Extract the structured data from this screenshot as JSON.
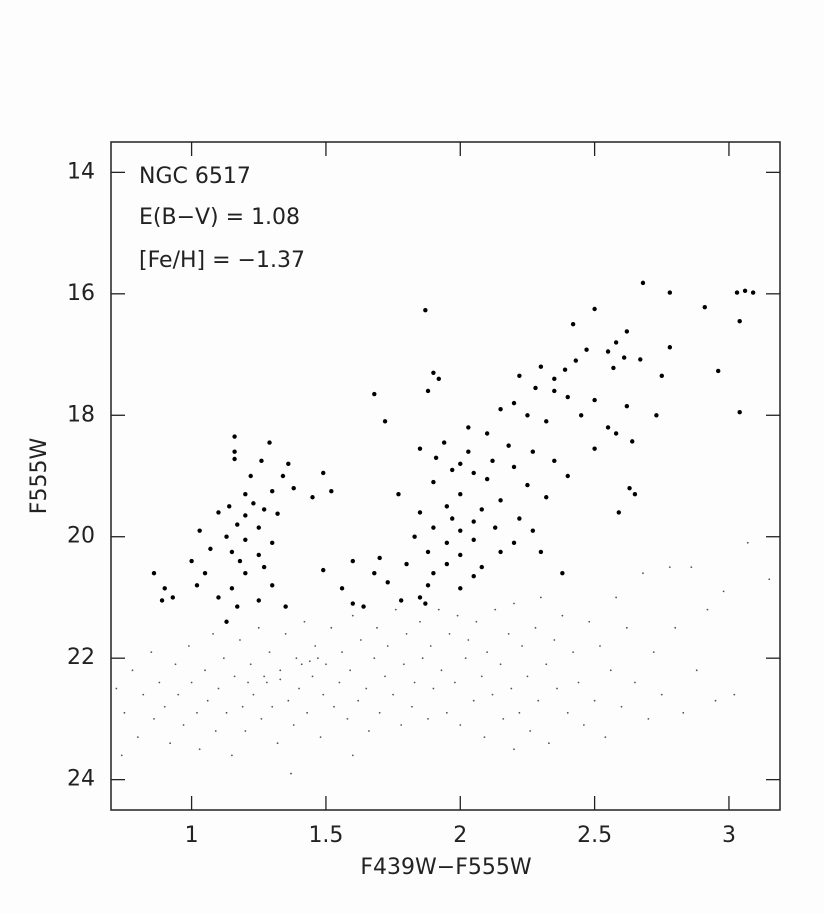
{
  "chart_data": {
    "type": "scatter",
    "annotations": [
      "NGC 6517",
      "E(B−V) = 1.08",
      "[Fe/H] = −1.37"
    ],
    "x_label": "F439W−F555W",
    "y_label": "F555W",
    "xlim": [
      0.7,
      3.19
    ],
    "ylim": [
      24.5,
      13.5
    ],
    "xticks": [
      1,
      1.5,
      2,
      2.5,
      3
    ],
    "yticks": [
      14,
      16,
      18,
      20,
      22,
      24
    ],
    "series": [
      {
        "color": "#000000",
        "x": [
          1.87,
          2.68,
          2.78,
          3.03,
          3.06,
          3.09,
          2.91,
          2.5,
          2.42,
          3.04,
          2.62,
          2.58,
          2.47,
          2.55,
          2.78,
          2.67,
          2.61,
          2.57,
          2.96,
          2.43,
          2.39,
          2.75,
          1.9,
          1.92,
          2.3,
          2.35,
          2.22,
          1.68,
          1.88,
          2.28,
          2.35,
          2.4,
          2.5,
          2.62,
          2.2,
          2.15,
          3.04,
          2.73,
          1.72,
          2.03,
          2.25,
          2.32,
          2.45,
          2.55,
          2.58,
          1.16,
          1.29,
          2.64,
          1.94,
          2.1,
          2.18,
          1.85,
          2.5,
          1.16,
          2.03,
          2.27,
          1.16,
          1.26,
          1.36,
          1.91,
          2.0,
          2.12,
          2.2,
          2.35,
          1.97,
          1.49,
          2.05,
          2.4,
          1.22,
          1.34,
          1.9,
          2.1,
          2.25,
          2.63,
          2.65,
          1.52,
          1.2,
          1.3,
          1.38,
          1.77,
          2.0,
          2.15,
          2.32,
          1.45,
          1.23,
          1.27,
          1.14,
          1.95,
          2.08,
          2.59,
          1.1,
          1.2,
          1.32,
          1.85,
          1.97,
          2.05,
          2.22,
          1.17,
          1.25,
          1.03,
          1.9,
          2.0,
          2.13,
          2.27,
          1.13,
          1.2,
          1.3,
          1.83,
          1.95,
          2.05,
          2.2,
          1.07,
          1.15,
          1.25,
          1.88,
          2.0,
          2.15,
          2.3,
          1.0,
          1.18,
          1.27,
          1.6,
          1.7,
          1.8,
          1.95,
          2.08,
          0.86,
          1.05,
          1.2,
          1.49,
          1.68,
          1.9,
          2.05,
          2.38,
          0.9,
          1.02,
          1.15,
          1.3,
          1.56,
          1.73,
          1.88,
          2.0,
          0.89,
          0.93,
          1.1,
          1.25,
          1.6,
          1.78,
          1.85,
          1.17,
          1.35,
          1.64,
          1.87,
          1.13
        ],
        "values": [
          16.27,
          15.82,
          15.98,
          15.98,
          15.95,
          15.98,
          16.22,
          16.25,
          16.5,
          16.45,
          16.62,
          16.8,
          16.92,
          16.95,
          16.88,
          17.08,
          17.05,
          17.22,
          17.27,
          17.1,
          17.25,
          17.35,
          17.3,
          17.4,
          17.2,
          17.4,
          17.35,
          17.65,
          17.6,
          17.55,
          17.6,
          17.7,
          17.75,
          17.85,
          17.8,
          17.9,
          17.95,
          18.0,
          18.1,
          18.2,
          18.0,
          18.1,
          18.0,
          18.2,
          18.3,
          18.35,
          18.45,
          18.43,
          18.45,
          18.3,
          18.5,
          18.55,
          18.55,
          18.6,
          18.6,
          18.6,
          18.72,
          18.75,
          18.8,
          18.7,
          18.8,
          18.75,
          18.85,
          18.75,
          18.9,
          18.95,
          18.95,
          19.0,
          19.0,
          19.0,
          19.1,
          19.05,
          19.15,
          19.2,
          19.3,
          19.25,
          19.3,
          19.25,
          19.2,
          19.3,
          19.3,
          19.4,
          19.35,
          19.35,
          19.45,
          19.55,
          19.5,
          19.5,
          19.55,
          19.6,
          19.6,
          19.65,
          19.62,
          19.6,
          19.7,
          19.75,
          19.7,
          19.8,
          19.85,
          19.9,
          19.85,
          19.9,
          19.85,
          19.9,
          20.0,
          20.05,
          20.1,
          20.0,
          20.1,
          20.05,
          20.1,
          20.2,
          20.25,
          20.3,
          20.25,
          20.3,
          20.25,
          20.25,
          20.4,
          20.4,
          20.5,
          20.4,
          20.35,
          20.45,
          20.45,
          20.5,
          20.6,
          20.6,
          20.6,
          20.55,
          20.6,
          20.6,
          20.65,
          20.6,
          20.85,
          20.8,
          20.85,
          20.8,
          20.85,
          20.75,
          20.8,
          20.85,
          21.05,
          21.0,
          21.0,
          21.05,
          21.1,
          21.05,
          21.0,
          21.15,
          21.15,
          21.15,
          21.1,
          21.4
        ]
      },
      {
        "color": "#555555",
        "x": [
          0.72,
          0.75,
          0.78,
          0.8,
          0.82,
          0.85,
          0.86,
          0.88,
          0.9,
          0.92,
          0.94,
          0.95,
          0.97,
          0.99,
          1.0,
          1.02,
          1.03,
          1.05,
          1.06,
          1.08,
          1.09,
          1.1,
          1.12,
          1.13,
          1.15,
          1.16,
          1.18,
          1.19,
          1.2,
          1.22,
          1.23,
          1.25,
          1.26,
          1.28,
          1.29,
          1.3,
          1.32,
          1.33,
          1.35,
          1.36,
          1.38,
          1.39,
          1.4,
          1.42,
          1.43,
          1.45,
          1.46,
          1.48,
          1.49,
          1.5,
          1.52,
          1.53,
          1.55,
          1.56,
          1.58,
          1.59,
          1.6,
          1.62,
          1.63,
          1.65,
          1.66,
          1.68,
          1.69,
          1.7,
          1.72,
          1.73,
          1.75,
          1.76,
          1.78,
          1.79,
          1.8,
          1.82,
          1.83,
          1.85,
          1.86,
          1.88,
          1.89,
          1.9,
          1.92,
          1.93,
          1.95,
          1.96,
          1.98,
          1.99,
          2.0,
          2.02,
          2.03,
          2.05,
          2.06,
          2.08,
          2.09,
          2.1,
          2.12,
          2.13,
          2.15,
          2.16,
          2.18,
          2.19,
          2.2,
          2.22,
          2.23,
          2.25,
          2.26,
          2.28,
          2.29,
          2.3,
          2.32,
          2.33,
          2.35,
          2.36,
          2.38,
          2.4,
          2.42,
          2.44,
          2.46,
          2.48,
          2.5,
          2.52,
          2.54,
          2.56,
          2.58,
          2.6,
          2.62,
          2.65,
          2.68,
          2.7,
          2.72,
          2.75,
          2.78,
          2.8,
          2.83,
          2.86,
          2.88,
          2.92,
          2.95,
          2.98,
          3.02,
          3.07,
          3.15,
          1.37,
          0.74,
          1.6,
          2.2,
          1.27,
          1.33,
          1.41,
          1.44,
          1.21,
          1.47
        ],
        "values": [
          22.5,
          22.9,
          22.2,
          23.3,
          22.6,
          21.9,
          23.0,
          22.4,
          22.8,
          23.4,
          22.1,
          22.6,
          23.1,
          21.8,
          22.4,
          22.9,
          23.5,
          22.2,
          22.7,
          21.6,
          23.2,
          22.5,
          22.0,
          22.9,
          23.6,
          22.3,
          21.7,
          22.8,
          23.2,
          22.1,
          22.6,
          21.5,
          23.0,
          22.4,
          21.9,
          22.8,
          23.4,
          22.2,
          21.6,
          22.7,
          23.1,
          22.0,
          22.5,
          21.4,
          22.9,
          22.3,
          21.8,
          23.3,
          22.6,
          22.1,
          21.5,
          22.8,
          22.4,
          21.9,
          23.0,
          22.2,
          21.3,
          22.7,
          21.7,
          22.5,
          23.2,
          22.0,
          21.5,
          22.9,
          22.3,
          21.8,
          22.6,
          21.2,
          23.1,
          22.1,
          21.6,
          22.8,
          22.4,
          21.4,
          22.0,
          23.0,
          21.8,
          22.5,
          21.2,
          22.2,
          22.9,
          21.6,
          22.4,
          21.3,
          23.1,
          22.0,
          21.7,
          22.7,
          21.4,
          22.3,
          23.3,
          21.9,
          22.6,
          21.2,
          22.1,
          23.0,
          21.6,
          22.5,
          21.1,
          22.9,
          21.8,
          22.3,
          23.2,
          21.5,
          22.7,
          21.0,
          22.1,
          23.4,
          21.7,
          22.5,
          21.3,
          22.9,
          21.9,
          22.4,
          23.1,
          21.4,
          22.7,
          21.8,
          23.3,
          22.2,
          21.0,
          22.8,
          21.5,
          22.4,
          20.6,
          23.0,
          21.9,
          22.6,
          20.5,
          21.5,
          22.9,
          20.5,
          22.2,
          21.2,
          22.7,
          20.9,
          22.6,
          20.1,
          20.7,
          23.9,
          23.6,
          23.6,
          23.5,
          22.3,
          22.35,
          22.1,
          22.05,
          22.4,
          22.0
        ]
      }
    ]
  }
}
